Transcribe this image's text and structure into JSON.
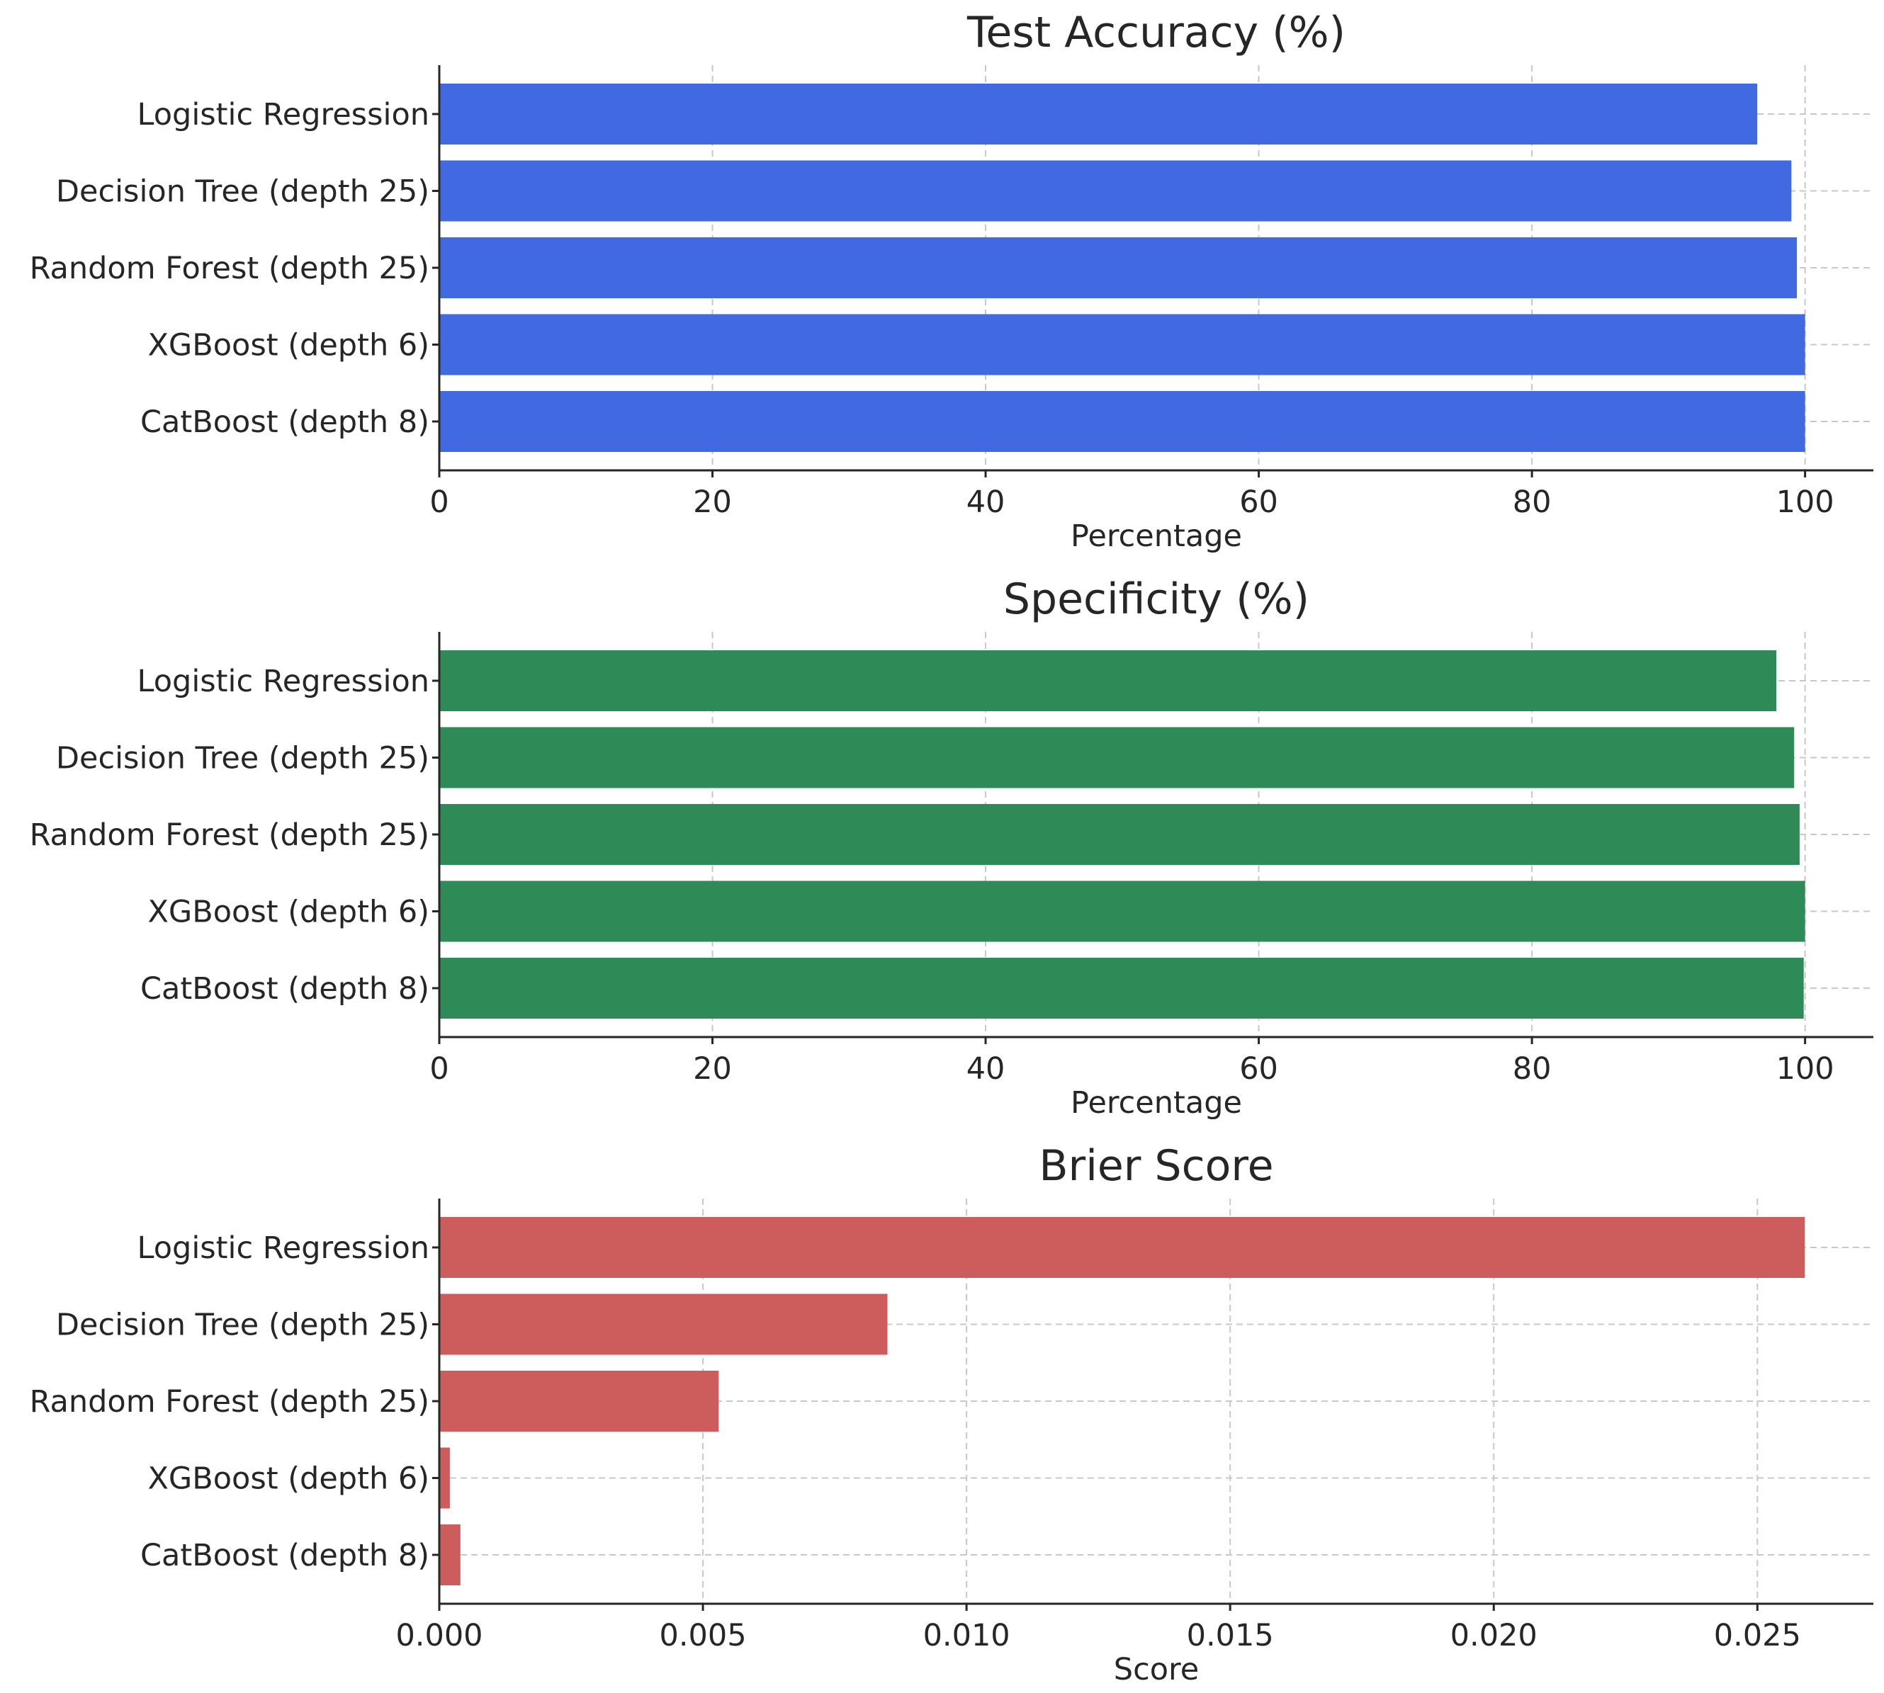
{
  "chart_data": [
    {
      "type": "bar",
      "orientation": "horizontal",
      "title": "Test Accuracy (%)",
      "xlabel": "Percentage",
      "ylabel": "",
      "categories": [
        "Logistic Regression",
        "Decision Tree (depth 25)",
        "Random Forest (depth 25)",
        "XGBoost (depth 6)",
        "CatBoost (depth 8)"
      ],
      "values": [
        96.5,
        99.0,
        99.4,
        100.0,
        100.0
      ],
      "xlim": [
        0,
        105
      ],
      "xticks": [
        0,
        20,
        40,
        60,
        80,
        100
      ],
      "xtick_labels": [
        "0",
        "20",
        "40",
        "60",
        "80",
        "100"
      ],
      "color": "#4169e1",
      "grid": true
    },
    {
      "type": "bar",
      "orientation": "horizontal",
      "title": "Specificity (%)",
      "xlabel": "Percentage",
      "ylabel": "",
      "categories": [
        "Logistic Regression",
        "Decision Tree (depth 25)",
        "Random Forest (depth 25)",
        "XGBoost (depth 6)",
        "CatBoost (depth 8)"
      ],
      "values": [
        97.9,
        99.2,
        99.6,
        100.0,
        99.9
      ],
      "xlim": [
        0,
        105
      ],
      "xticks": [
        0,
        20,
        40,
        60,
        80,
        100
      ],
      "xtick_labels": [
        "0",
        "20",
        "40",
        "60",
        "80",
        "100"
      ],
      "color": "#2e8b57",
      "grid": true
    },
    {
      "type": "bar",
      "orientation": "horizontal",
      "title": "Brier Score",
      "xlabel": "Score",
      "ylabel": "",
      "categories": [
        "Logistic Regression",
        "Decision Tree (depth 25)",
        "Random Forest (depth 25)",
        "XGBoost (depth 6)",
        "CatBoost (depth 8)"
      ],
      "values": [
        0.0259,
        0.0085,
        0.0053,
        0.0002,
        0.0004
      ],
      "xlim": [
        0,
        0.0272
      ],
      "xticks": [
        0,
        0.005,
        0.01,
        0.015,
        0.02,
        0.025
      ],
      "xtick_labels": [
        "0.000",
        "0.005",
        "0.010",
        "0.015",
        "0.020",
        "0.025"
      ],
      "color": "#cd5c5c",
      "grid": true
    }
  ]
}
